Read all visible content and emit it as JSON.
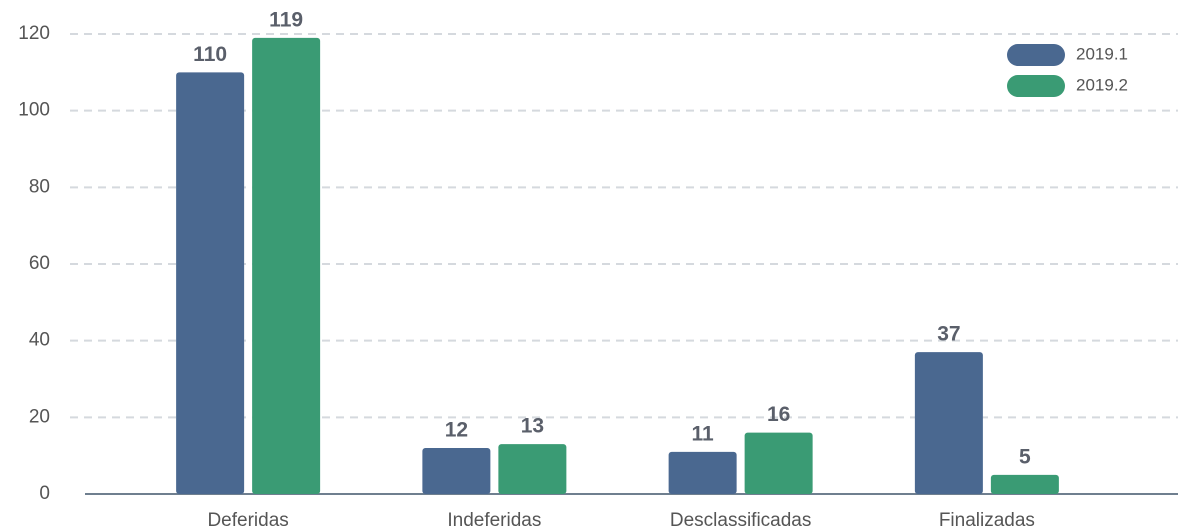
{
  "chart_data": {
    "type": "bar",
    "categories": [
      "Deferidas",
      "Indeferidas",
      "Desclassificadas",
      "Finalizadas"
    ],
    "series": [
      {
        "name": "2019.1",
        "color": "#4a6890",
        "values": [
          110,
          12,
          11,
          37
        ]
      },
      {
        "name": "2019.2",
        "color": "#3a9b74",
        "values": [
          119,
          13,
          16,
          5
        ]
      }
    ],
    "ylim": [
      0,
      120
    ],
    "yticks": [
      0,
      20,
      40,
      60,
      80,
      100,
      120
    ],
    "grid": true,
    "legend": "top-right"
  }
}
